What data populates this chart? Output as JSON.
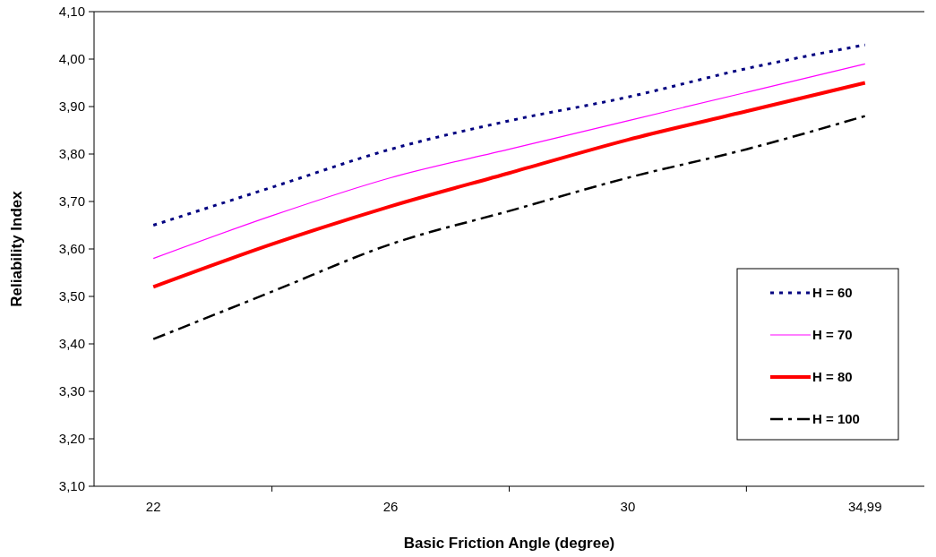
{
  "chart_data": {
    "type": "line",
    "xlabel": "Basic Friction Angle (degree)",
    "ylabel": "Reliability Index",
    "categories": [
      "22",
      null,
      "26",
      null,
      "30",
      null,
      "34,99"
    ],
    "series": [
      {
        "name": "H = 60",
        "color": "#000080",
        "line_style": "dotted",
        "values": [
          3.65,
          3.73,
          3.81,
          3.87,
          3.92,
          3.98,
          4.03
        ]
      },
      {
        "name": "H = 70",
        "color": "#ff00ff",
        "line_style": "solid",
        "values": [
          3.58,
          3.67,
          3.75,
          3.81,
          3.87,
          3.93,
          3.99
        ]
      },
      {
        "name": "H = 80",
        "color": "#ff0000",
        "line_style": "solid",
        "values": [
          3.52,
          3.61,
          3.69,
          3.76,
          3.83,
          3.89,
          3.95
        ]
      },
      {
        "name": "H = 100",
        "color": "#000000",
        "line_style": "dashdot",
        "values": [
          3.41,
          3.51,
          3.61,
          3.68,
          3.75,
          3.81,
          3.88
        ]
      }
    ],
    "ylim": [
      3.1,
      4.1
    ],
    "yticks": [
      {
        "value": 3.1,
        "label": "3,10"
      },
      {
        "value": 3.2,
        "label": "3,20"
      },
      {
        "value": 3.3,
        "label": "3,30"
      },
      {
        "value": 3.4,
        "label": "3,40"
      },
      {
        "value": 3.5,
        "label": "3,50"
      },
      {
        "value": 3.6,
        "label": "3,60"
      },
      {
        "value": 3.7,
        "label": "3,70"
      },
      {
        "value": 3.8,
        "label": "3,80"
      },
      {
        "value": 3.9,
        "label": "3,90"
      },
      {
        "value": 4.0,
        "label": "4,00"
      },
      {
        "value": 4.1,
        "label": "4,10"
      }
    ],
    "grid": false,
    "legend": "right",
    "marker": "none"
  }
}
